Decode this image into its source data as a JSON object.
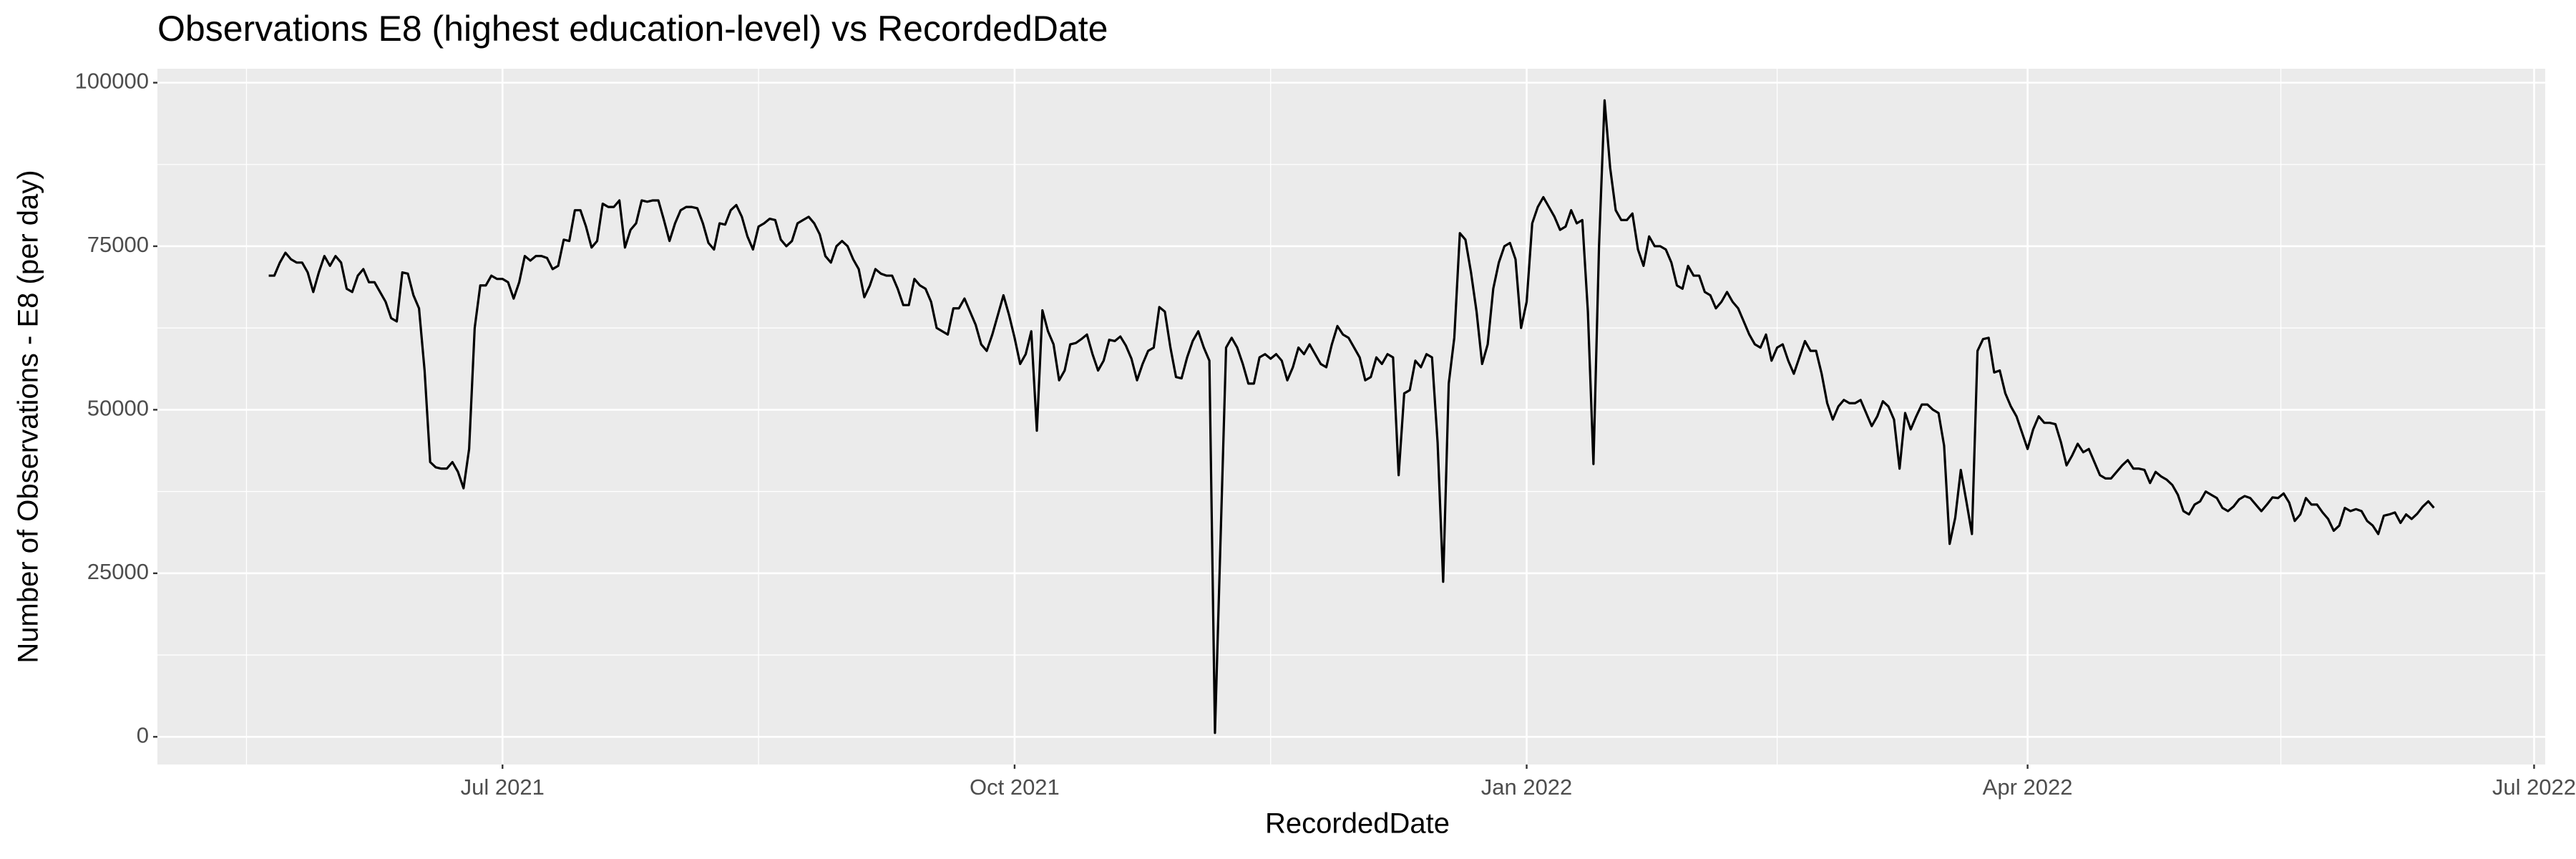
{
  "chart_data": {
    "type": "line",
    "title": "Observations E8 (highest education-level) vs RecordedDate",
    "x_label": "RecordedDate",
    "y_label": "Number of Observations - E8 (per day)",
    "color": "#000000",
    "grid": true,
    "xlim": [
      "2021-04-30",
      "2022-07-03"
    ],
    "xticks": [
      {
        "value": "2021-07-01",
        "label": "Jul 2021"
      },
      {
        "value": "2021-10-01",
        "label": "Oct 2021"
      },
      {
        "value": "2022-01-01",
        "label": "Jan 2022"
      },
      {
        "value": "2022-04-01",
        "label": "Apr 2022"
      },
      {
        "value": "2022-07-01",
        "label": "Jul 2022"
      }
    ],
    "ylim": [
      -4235,
      102135
    ],
    "yticks": [
      0,
      25000,
      50000,
      75000,
      100000
    ],
    "x": [
      "2021-05-20",
      "2021-05-21",
      "2021-05-22",
      "2021-05-23",
      "2021-05-24",
      "2021-05-25",
      "2021-05-26",
      "2021-05-27",
      "2021-05-28",
      "2021-05-29",
      "2021-05-30",
      "2021-05-31",
      "2021-06-01",
      "2021-06-02",
      "2021-06-03",
      "2021-06-04",
      "2021-06-05",
      "2021-06-06",
      "2021-06-07",
      "2021-06-08",
      "2021-06-09",
      "2021-06-10",
      "2021-06-11",
      "2021-06-12",
      "2021-06-13",
      "2021-06-14",
      "2021-06-15",
      "2021-06-16",
      "2021-06-17",
      "2021-06-18",
      "2021-06-19",
      "2021-06-20",
      "2021-06-21",
      "2021-06-22",
      "2021-06-23",
      "2021-06-24",
      "2021-06-25",
      "2021-06-26",
      "2021-06-27",
      "2021-06-28",
      "2021-06-29",
      "2021-06-30",
      "2021-07-01",
      "2021-07-02",
      "2021-07-03",
      "2021-07-04",
      "2021-07-05",
      "2021-07-06",
      "2021-07-07",
      "2021-07-08",
      "2021-07-09",
      "2021-07-10",
      "2021-07-11",
      "2021-07-12",
      "2021-07-13",
      "2021-07-14",
      "2021-07-15",
      "2021-07-16",
      "2021-07-17",
      "2021-07-18",
      "2021-07-19",
      "2021-07-20",
      "2021-07-21",
      "2021-07-22",
      "2021-07-23",
      "2021-07-24",
      "2021-07-25",
      "2021-07-26",
      "2021-07-27",
      "2021-07-28",
      "2021-07-29",
      "2021-07-30",
      "2021-07-31",
      "2021-08-01",
      "2021-08-02",
      "2021-08-03",
      "2021-08-04",
      "2021-08-05",
      "2021-08-06",
      "2021-08-07",
      "2021-08-08",
      "2021-08-09",
      "2021-08-10",
      "2021-08-11",
      "2021-08-12",
      "2021-08-13",
      "2021-08-14",
      "2021-08-15",
      "2021-08-16",
      "2021-08-17",
      "2021-08-18",
      "2021-08-19",
      "2021-08-20",
      "2021-08-21",
      "2021-08-22",
      "2021-08-23",
      "2021-08-24",
      "2021-08-25",
      "2021-08-26",
      "2021-08-27",
      "2021-08-28",
      "2021-08-29",
      "2021-08-30",
      "2021-08-31",
      "2021-09-01",
      "2021-09-02",
      "2021-09-03",
      "2021-09-04",
      "2021-09-05",
      "2021-09-06",
      "2021-09-07",
      "2021-09-08",
      "2021-09-09",
      "2021-09-10",
      "2021-09-11",
      "2021-09-12",
      "2021-09-13",
      "2021-09-14",
      "2021-09-15",
      "2021-09-16",
      "2021-09-17",
      "2021-09-18",
      "2021-09-19",
      "2021-09-20",
      "2021-09-21",
      "2021-09-22",
      "2021-09-23",
      "2021-09-24",
      "2021-09-25",
      "2021-09-26",
      "2021-09-27",
      "2021-09-28",
      "2021-09-29",
      "2021-09-30",
      "2021-10-01",
      "2021-10-02",
      "2021-10-03",
      "2021-10-04",
      "2021-10-05",
      "2021-10-06",
      "2021-10-07",
      "2021-10-08",
      "2021-10-09",
      "2021-10-10",
      "2021-10-11",
      "2021-10-12",
      "2021-10-13",
      "2021-10-14",
      "2021-10-15",
      "2021-10-16",
      "2021-10-17",
      "2021-10-18",
      "2021-10-19",
      "2021-10-20",
      "2021-10-21",
      "2021-10-22",
      "2021-10-23",
      "2021-10-24",
      "2021-10-25",
      "2021-10-26",
      "2021-10-27",
      "2021-10-28",
      "2021-10-29",
      "2021-10-30",
      "2021-10-31",
      "2021-11-01",
      "2021-11-02",
      "2021-11-03",
      "2021-11-04",
      "2021-11-05",
      "2021-11-06",
      "2021-11-07",
      "2021-11-08",
      "2021-11-09",
      "2021-11-10",
      "2021-11-11",
      "2021-11-12",
      "2021-11-13",
      "2021-11-14",
      "2021-11-15",
      "2021-11-16",
      "2021-11-17",
      "2021-11-18",
      "2021-11-19",
      "2021-11-20",
      "2021-11-21",
      "2021-11-22",
      "2021-11-23",
      "2021-11-24",
      "2021-11-25",
      "2021-11-26",
      "2021-11-27",
      "2021-11-28",
      "2021-11-29",
      "2021-11-30",
      "2021-12-01",
      "2021-12-02",
      "2021-12-03",
      "2021-12-04",
      "2021-12-05",
      "2021-12-06",
      "2021-12-07",
      "2021-12-08",
      "2021-12-09",
      "2021-12-10",
      "2021-12-11",
      "2021-12-12",
      "2021-12-13",
      "2021-12-14",
      "2021-12-15",
      "2021-12-16",
      "2021-12-17",
      "2021-12-18",
      "2021-12-19",
      "2021-12-20",
      "2021-12-21",
      "2021-12-22",
      "2021-12-23",
      "2021-12-24",
      "2021-12-25",
      "2021-12-26",
      "2021-12-27",
      "2021-12-28",
      "2021-12-29",
      "2021-12-30",
      "2021-12-31",
      "2022-01-01",
      "2022-01-02",
      "2022-01-03",
      "2022-01-04",
      "2022-01-05",
      "2022-01-06",
      "2022-01-07",
      "2022-01-08",
      "2022-01-09",
      "2022-01-10",
      "2022-01-11",
      "2022-01-12",
      "2022-01-13",
      "2022-01-14",
      "2022-01-15",
      "2022-01-16",
      "2022-01-17",
      "2022-01-18",
      "2022-01-19",
      "2022-01-20",
      "2022-01-21",
      "2022-01-22",
      "2022-01-23",
      "2022-01-24",
      "2022-01-25",
      "2022-01-26",
      "2022-01-27",
      "2022-01-28",
      "2022-01-29",
      "2022-01-30",
      "2022-01-31",
      "2022-02-01",
      "2022-02-02",
      "2022-02-03",
      "2022-02-04",
      "2022-02-05",
      "2022-02-06",
      "2022-02-07",
      "2022-02-08",
      "2022-02-09",
      "2022-02-10",
      "2022-02-11",
      "2022-02-12",
      "2022-02-13",
      "2022-02-14",
      "2022-02-15",
      "2022-02-16",
      "2022-02-17",
      "2022-02-18",
      "2022-02-19",
      "2022-02-20",
      "2022-02-21",
      "2022-02-22",
      "2022-02-23",
      "2022-02-24",
      "2022-02-25",
      "2022-02-26",
      "2022-02-27",
      "2022-02-28",
      "2022-03-01",
      "2022-03-02",
      "2022-03-03",
      "2022-03-04",
      "2022-03-05",
      "2022-03-06",
      "2022-03-07",
      "2022-03-08",
      "2022-03-09",
      "2022-03-10",
      "2022-03-11",
      "2022-03-12",
      "2022-03-13",
      "2022-03-14",
      "2022-03-15",
      "2022-03-16",
      "2022-03-17",
      "2022-03-18",
      "2022-03-19",
      "2022-03-20",
      "2022-03-21",
      "2022-03-22",
      "2022-03-23",
      "2022-03-24",
      "2022-03-25",
      "2022-03-26",
      "2022-03-27",
      "2022-03-28",
      "2022-03-29",
      "2022-03-30",
      "2022-03-31",
      "2022-04-01",
      "2022-04-02",
      "2022-04-03",
      "2022-04-04",
      "2022-04-05",
      "2022-04-06",
      "2022-04-07",
      "2022-04-08",
      "2022-04-09",
      "2022-04-10",
      "2022-04-11",
      "2022-04-12",
      "2022-04-13",
      "2022-04-14",
      "2022-04-15",
      "2022-04-16",
      "2022-04-17",
      "2022-04-18",
      "2022-04-19",
      "2022-04-20",
      "2022-04-21",
      "2022-04-22",
      "2022-04-23",
      "2022-04-24",
      "2022-04-25",
      "2022-04-26",
      "2022-04-27",
      "2022-04-28",
      "2022-04-29",
      "2022-04-30",
      "2022-05-01",
      "2022-05-02",
      "2022-05-03",
      "2022-05-04",
      "2022-05-05",
      "2022-05-06",
      "2022-05-07",
      "2022-05-08",
      "2022-05-09",
      "2022-05-10",
      "2022-05-11",
      "2022-05-12",
      "2022-05-13",
      "2022-05-14",
      "2022-05-15",
      "2022-05-16",
      "2022-05-17",
      "2022-05-18",
      "2022-05-19",
      "2022-05-20",
      "2022-05-21",
      "2022-05-22",
      "2022-05-23",
      "2022-05-24",
      "2022-05-25",
      "2022-05-26",
      "2022-05-27",
      "2022-05-28",
      "2022-05-29",
      "2022-05-30",
      "2022-05-31",
      "2022-06-01",
      "2022-06-02",
      "2022-06-03",
      "2022-06-04",
      "2022-06-05",
      "2022-06-06",
      "2022-06-07",
      "2022-06-08",
      "2022-06-09",
      "2022-06-10",
      "2022-06-11",
      "2022-06-12",
      "2022-06-13"
    ],
    "values": [
      70500,
      70500,
      72500,
      74000,
      73000,
      72500,
      72500,
      71000,
      68000,
      71000,
      73500,
      72000,
      73500,
      72500,
      68500,
      68000,
      70500,
      71500,
      69500,
      69500,
      68000,
      66500,
      64000,
      63500,
      71000,
      70800,
      67500,
      65500,
      56000,
      42000,
      41200,
      41000,
      41000,
      42000,
      40500,
      38000,
      44000,
      62500,
      69000,
      69000,
      70500,
      70000,
      70000,
      69500,
      67000,
      69500,
      73500,
      72800,
      73500,
      73500,
      73200,
      71500,
      72000,
      76000,
      75800,
      80500,
      80500,
      78000,
      74800,
      75800,
      81500,
      81000,
      81000,
      82000,
      74800,
      77500,
      78500,
      82000,
      81800,
      82000,
      82000,
      79000,
      75800,
      78500,
      80500,
      81000,
      81000,
      80800,
      78500,
      75500,
      74500,
      78500,
      78300,
      80500,
      81300,
      79500,
      76500,
      74500,
      78000,
      78500,
      79200,
      79000,
      76000,
      75000,
      75800,
      78500,
      79000,
      79500,
      78500,
      76800,
      73500,
      72500,
      75000,
      75800,
      75000,
      73000,
      71500,
      67200,
      69000,
      71500,
      70800,
      70500,
      70500,
      68500,
      66000,
      66000,
      70000,
      69000,
      68500,
      66500,
      62500,
      62000,
      61500,
      65500,
      65500,
      67000,
      65000,
      63000,
      60000,
      59000,
      61500,
      64500,
      67500,
      64500,
      61000,
      57000,
      58500,
      62000,
      46800,
      65200,
      62000,
      60000,
      54500,
      56000,
      60000,
      60200,
      60800,
      61500,
      58500,
      56000,
      57500,
      60700,
      60500,
      61200,
      59800,
      57800,
      54500,
      57000,
      59000,
      59500,
      65700,
      65000,
      59500,
      55000,
      54800,
      58000,
      60500,
      62000,
      59500,
      57500,
      600,
      30000,
      59500,
      61000,
      59500,
      57000,
      54000,
      54000,
      58000,
      58500,
      57800,
      58500,
      57500,
      54500,
      56500,
      59500,
      58500,
      60000,
      58500,
      57000,
      56500,
      60000,
      62800,
      61500,
      61000,
      59500,
      58000,
      54500,
      55000,
      58000,
      57000,
      58500,
      58000,
      40000,
      52500,
      53000,
      57500,
      56500,
      58500,
      58000,
      45000,
      23700,
      54000,
      61000,
      77000,
      76000,
      71000,
      65000,
      57000,
      60000,
      68500,
      72500,
      75000,
      75500,
      73000,
      62500,
      66500,
      78500,
      81000,
      82500,
      81000,
      79500,
      77500,
      78000,
      80500,
      78500,
      79000,
      65000,
      41700,
      75000,
      97300,
      87000,
      80500,
      79000,
      79000,
      80000,
      74500,
      72000,
      76500,
      75000,
      75000,
      74500,
      72500,
      69000,
      68500,
      72000,
      70500,
      70500,
      68000,
      67500,
      65500,
      66500,
      68000,
      66500,
      65500,
      63500,
      61500,
      60000,
      59500,
      61500,
      57500,
      59500,
      60000,
      57500,
      55500,
      58000,
      60500,
      59000,
      59000,
      55500,
      51000,
      48500,
      50500,
      51500,
      51000,
      51000,
      51500,
      49500,
      47500,
      49000,
      51300,
      50500,
      48500,
      41000,
      49500,
      47000,
      49000,
      50800,
      50800,
      50000,
      49500,
      44500,
      29500,
      33500,
      40800,
      36000,
      31000,
      59000,
      60800,
      61000,
      55700,
      56000,
      52500,
      50500,
      49000,
      46500,
      44000,
      47000,
      49000,
      48000,
      48000,
      47800,
      45000,
      41500,
      43000,
      44800,
      43500,
      44000,
      42000,
      40000,
      39500,
      39500,
      40500,
      41500,
      42300,
      41000,
      41000,
      40800,
      38800,
      40500,
      39800,
      39300,
      38500,
      37000,
      34500,
      34000,
      35500,
      36000,
      37500,
      37000,
      36500,
      35000,
      34500,
      35200,
      36300,
      36800,
      36500,
      35500,
      34500,
      35500,
      36600,
      36500,
      37200,
      35800,
      33000,
      34000,
      36500,
      35500,
      35500,
      34300,
      33300,
      31500,
      32300,
      35000,
      34500,
      34800,
      34500,
      33000,
      32300,
      31000,
      33800,
      34000,
      34300,
      32700,
      34000,
      33300,
      34100,
      35200,
      36000,
      35000
    ]
  }
}
